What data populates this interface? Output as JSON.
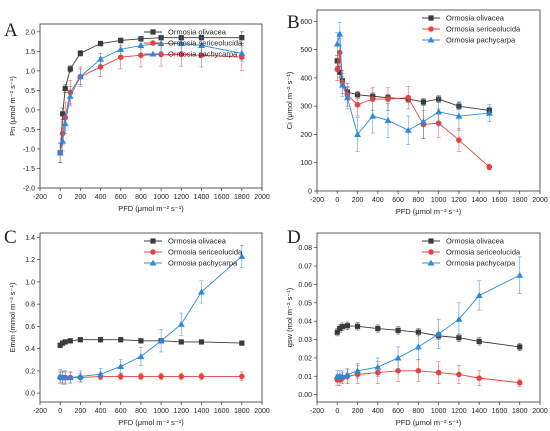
{
  "chart_data": [
    {
      "panel": "A",
      "type": "line",
      "xlabel": "PFD (μmol m⁻² s⁻¹)",
      "ylabel": "Pn (μmol m⁻² s⁻¹)",
      "xlim": [
        -200,
        2000
      ],
      "ylim": [
        -2.0,
        2.2
      ],
      "xticks": [
        -200,
        0,
        200,
        400,
        600,
        800,
        1000,
        1200,
        1400,
        1600,
        1800,
        2000
      ],
      "yticks": [
        -2.0,
        -1.5,
        -1.0,
        -0.5,
        0.0,
        0.5,
        1.0,
        1.5,
        2.0
      ],
      "ytick_labels": [
        "-2.0",
        "-1.5",
        "-1.0",
        "-0.5",
        "0.0",
        "0.5",
        "1.0",
        "1.5",
        "2.0"
      ],
      "legend_position": "top-right",
      "series": [
        {
          "name": "Ormosia olivacea",
          "color": "#3a3a3a",
          "marker": "square",
          "x": [
            0,
            25,
            50,
            100,
            200,
            400,
            600,
            800,
            1000,
            1200,
            1400,
            1800
          ],
          "y": [
            -1.1,
            -0.1,
            0.55,
            1.05,
            1.45,
            1.7,
            1.78,
            1.82,
            1.85,
            1.85,
            1.85,
            1.85
          ],
          "err": [
            0.25,
            0.15,
            0.1,
            0.08,
            0.07,
            0.06,
            0.06,
            0.06,
            0.06,
            0.06,
            0.06,
            0.15
          ]
        },
        {
          "name": "Ormosia sericeolucida",
          "color": "#e8413e",
          "marker": "circle",
          "x": [
            0,
            25,
            50,
            100,
            200,
            400,
            600,
            800,
            1000,
            1200,
            1400,
            1800
          ],
          "y": [
            -1.1,
            -0.6,
            -0.2,
            0.45,
            0.85,
            1.1,
            1.35,
            1.4,
            1.42,
            1.42,
            1.4,
            1.35
          ],
          "err": [
            0.25,
            0.3,
            0.4,
            0.3,
            0.25,
            0.25,
            0.3,
            0.3,
            0.3,
            0.3,
            0.3,
            0.35
          ]
        },
        {
          "name": "Ormosia pachycarpa",
          "color": "#2c88d9",
          "marker": "triangle",
          "x": [
            0,
            25,
            50,
            100,
            200,
            400,
            600,
            800,
            1000,
            1200,
            1400,
            1800
          ],
          "y": [
            -1.1,
            -0.8,
            -0.35,
            0.35,
            0.85,
            1.3,
            1.55,
            1.65,
            1.7,
            1.7,
            1.65,
            1.45
          ],
          "err": [
            0.25,
            0.25,
            0.25,
            0.25,
            0.2,
            0.15,
            0.15,
            0.2,
            0.2,
            0.2,
            0.2,
            0.2
          ]
        }
      ]
    },
    {
      "panel": "B",
      "type": "line",
      "xlabel": "PFD (μmol m⁻² s⁻¹)",
      "ylabel": "Ci (μmol m⁻² s⁻¹)",
      "xlim": [
        -200,
        2000
      ],
      "ylim": [
        0,
        640
      ],
      "xticks": [
        -200,
        0,
        200,
        400,
        600,
        800,
        1000,
        1200,
        1400,
        1600,
        1800,
        2000
      ],
      "yticks": [
        0,
        100,
        200,
        300,
        400,
        500,
        600
      ],
      "ytick_labels": [
        "0",
        "100",
        "200",
        "300",
        "400",
        "500",
        "600"
      ],
      "legend_position": "top-right",
      "series": [
        {
          "name": "Ormosia olivacea",
          "color": "#3a3a3a",
          "marker": "square",
          "x": [
            0,
            25,
            50,
            100,
            200,
            350,
            500,
            700,
            850,
            1000,
            1200,
            1500
          ],
          "y": [
            460,
            420,
            390,
            350,
            340,
            335,
            330,
            325,
            315,
            325,
            300,
            285
          ],
          "err": [
            20,
            20,
            15,
            15,
            12,
            12,
            12,
            12,
            12,
            12,
            12,
            12
          ]
        },
        {
          "name": "Ormosia sericeolucida",
          "color": "#e8413e",
          "marker": "circle",
          "x": [
            0,
            25,
            50,
            100,
            200,
            350,
            500,
            700,
            850,
            1000,
            1200,
            1500
          ],
          "y": [
            430,
            490,
            385,
            340,
            305,
            325,
            325,
            330,
            235,
            240,
            180,
            85
          ],
          "err": [
            40,
            50,
            40,
            40,
            40,
            40,
            40,
            40,
            50,
            50,
            40,
            10
          ]
        },
        {
          "name": "Ormosia pachycarpa",
          "color": "#2c88d9",
          "marker": "triangle",
          "x": [
            0,
            25,
            50,
            100,
            200,
            350,
            500,
            700,
            850,
            1000,
            1200,
            1500
          ],
          "y": [
            520,
            555,
            375,
            330,
            200,
            265,
            250,
            215,
            245,
            280,
            265,
            275
          ],
          "err": [
            40,
            40,
            40,
            40,
            60,
            60,
            60,
            50,
            60,
            50,
            50,
            30
          ]
        }
      ]
    },
    {
      "panel": "C",
      "type": "line",
      "xlabel": "PFD (μmol m⁻² s⁻¹)",
      "ylabel": "Emm (mmol m⁻² s⁻¹)",
      "xlim": [
        -200,
        2000
      ],
      "ylim": [
        -0.08,
        1.44
      ],
      "xticks": [
        -200,
        0,
        200,
        400,
        600,
        800,
        1000,
        1200,
        1400,
        1600,
        1800,
        2000
      ],
      "yticks": [
        0.0,
        0.2,
        0.4,
        0.6,
        0.8,
        1.0,
        1.2,
        1.4
      ],
      "ytick_labels": [
        "0.0",
        "0.2",
        "0.4",
        "0.6",
        "0.8",
        "1.0",
        "1.2",
        "1.4"
      ],
      "legend_position": "top-right",
      "series": [
        {
          "name": "Ormosia olivacea",
          "color": "#3a3a3a",
          "marker": "square",
          "x": [
            0,
            25,
            50,
            100,
            200,
            400,
            600,
            800,
            1000,
            1200,
            1400,
            1800
          ],
          "y": [
            0.43,
            0.45,
            0.46,
            0.47,
            0.48,
            0.48,
            0.48,
            0.47,
            0.47,
            0.46,
            0.46,
            0.45
          ],
          "err": [
            0.02,
            0.02,
            0.02,
            0.02,
            0.02,
            0.02,
            0.02,
            0.02,
            0.02,
            0.02,
            0.02,
            0.02
          ]
        },
        {
          "name": "Ormosia sericeolucida",
          "color": "#e8413e",
          "marker": "circle",
          "x": [
            0,
            25,
            50,
            100,
            200,
            400,
            600,
            800,
            1000,
            1200,
            1400,
            1800
          ],
          "y": [
            0.14,
            0.14,
            0.14,
            0.14,
            0.14,
            0.15,
            0.15,
            0.15,
            0.15,
            0.15,
            0.15,
            0.15
          ],
          "err": [
            0.05,
            0.05,
            0.05,
            0.05,
            0.04,
            0.03,
            0.03,
            0.03,
            0.03,
            0.03,
            0.03,
            0.04
          ]
        },
        {
          "name": "Ormosia pachycarpa",
          "color": "#2c88d9",
          "marker": "triangle",
          "x": [
            0,
            25,
            50,
            100,
            200,
            400,
            600,
            800,
            1000,
            1200,
            1400,
            1800
          ],
          "y": [
            0.15,
            0.14,
            0.14,
            0.14,
            0.15,
            0.17,
            0.24,
            0.33,
            0.47,
            0.62,
            0.91,
            1.23
          ],
          "err": [
            0.06,
            0.06,
            0.06,
            0.05,
            0.05,
            0.05,
            0.06,
            0.08,
            0.1,
            0.1,
            0.1,
            0.1
          ]
        }
      ]
    },
    {
      "panel": "D",
      "type": "line",
      "xlabel": "PFD (μmol m⁻² s⁻¹)",
      "ylabel": "gsw (mol m⁻² s⁻¹)",
      "xlim": [
        -200,
        2000
      ],
      "ylim": [
        -0.004,
        0.088
      ],
      "xticks": [
        -200,
        0,
        200,
        400,
        600,
        800,
        1000,
        1200,
        1400,
        1600,
        1800,
        2000
      ],
      "yticks": [
        0.0,
        0.01,
        0.02,
        0.03,
        0.04,
        0.05,
        0.06,
        0.07,
        0.08
      ],
      "ytick_labels": [
        "0.00",
        "0.01",
        "0.02",
        "0.03",
        "0.04",
        "0.05",
        "0.06",
        "0.07",
        "0.08"
      ],
      "legend_position": "top-right",
      "series": [
        {
          "name": "Ormosia olivacea",
          "color": "#3a3a3a",
          "marker": "square",
          "x": [
            0,
            25,
            50,
            100,
            200,
            400,
            600,
            800,
            1000,
            1200,
            1400,
            1800
          ],
          "y": [
            0.034,
            0.036,
            0.037,
            0.0375,
            0.0372,
            0.036,
            0.035,
            0.034,
            0.032,
            0.031,
            0.029,
            0.026
          ],
          "err": [
            0.002,
            0.002,
            0.002,
            0.002,
            0.002,
            0.002,
            0.002,
            0.002,
            0.002,
            0.002,
            0.002,
            0.002
          ]
        },
        {
          "name": "Ormosia sericeolucida",
          "color": "#e8413e",
          "marker": "circle",
          "x": [
            0,
            25,
            50,
            100,
            200,
            400,
            600,
            800,
            1000,
            1200,
            1400,
            1800
          ],
          "y": [
            0.008,
            0.008,
            0.009,
            0.01,
            0.011,
            0.012,
            0.013,
            0.013,
            0.012,
            0.011,
            0.009,
            0.0065
          ],
          "err": [
            0.003,
            0.003,
            0.003,
            0.004,
            0.005,
            0.006,
            0.006,
            0.006,
            0.006,
            0.005,
            0.004,
            0.002
          ]
        },
        {
          "name": "Ormosia pachycarpa",
          "color": "#2c88d9",
          "marker": "triangle",
          "x": [
            0,
            25,
            50,
            100,
            200,
            400,
            600,
            800,
            1000,
            1200,
            1400,
            1800
          ],
          "y": [
            0.01,
            0.01,
            0.01,
            0.011,
            0.013,
            0.015,
            0.02,
            0.026,
            0.033,
            0.041,
            0.054,
            0.065
          ],
          "err": [
            0.003,
            0.003,
            0.003,
            0.003,
            0.004,
            0.005,
            0.006,
            0.007,
            0.008,
            0.009,
            0.008,
            0.01
          ]
        }
      ]
    }
  ]
}
